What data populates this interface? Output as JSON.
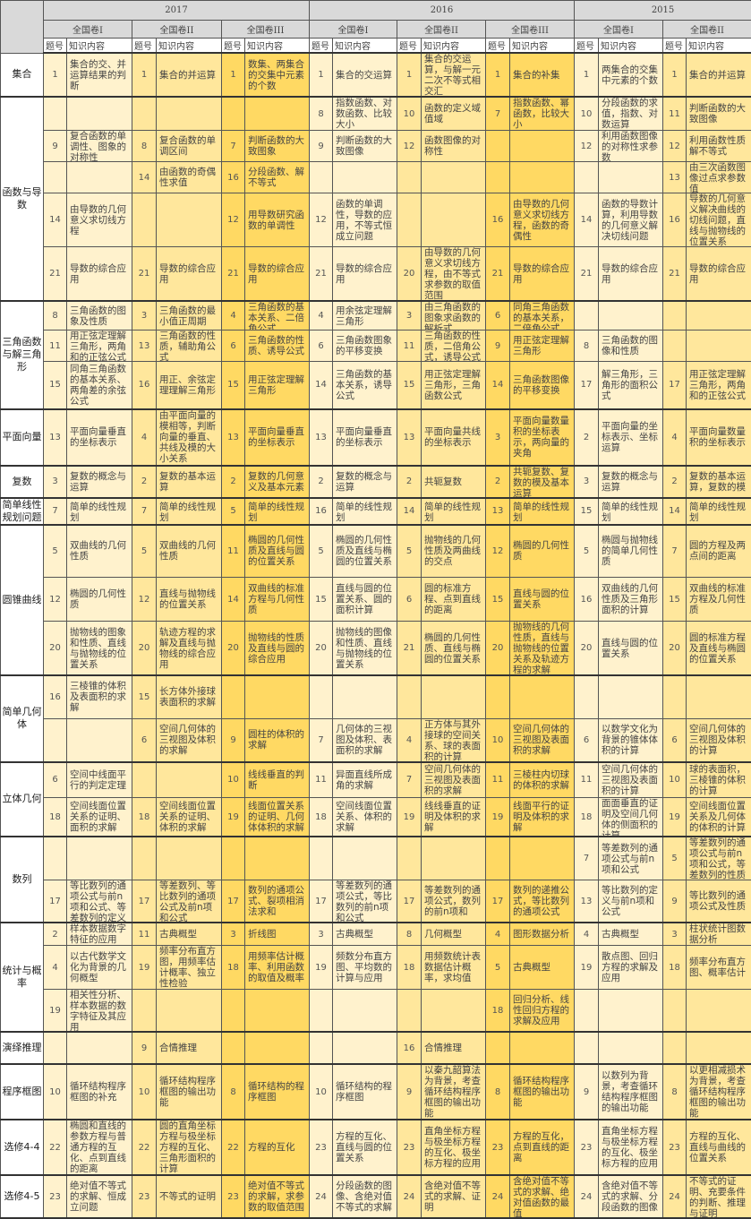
{
  "header": {
    "years": [
      {
        "label": "2017",
        "papers": 3
      },
      {
        "label": "2016",
        "papers": 3
      },
      {
        "label": "2015",
        "papers": 2
      }
    ],
    "papers": [
      "全国卷I",
      "全国卷II",
      "全国卷III",
      "全国卷I",
      "全国卷II",
      "全国卷III",
      "全国卷I",
      "全国卷II"
    ],
    "num_label": "题号",
    "content_label": "知识内容"
  },
  "colors": {
    "paper_I": "#fff2cd",
    "paper_II": "#ffe79c",
    "paper_III": "#ffd963",
    "header": "#d9d9d9"
  },
  "groups": [
    {
      "label": "集合",
      "rows": [
        [
          [
            "1",
            "集合的交、并运算结果的判断"
          ],
          [
            "1",
            "集合的并运算"
          ],
          [
            "1",
            "数集、两集合的交集中元素的个数"
          ],
          [
            "1",
            "集合的交运算"
          ],
          [
            "1",
            "集合的交运算，与解一元二次不等式相交汇"
          ],
          [
            "1",
            "集合的补集"
          ],
          [
            "1",
            "两集合的交集中元素的个数"
          ],
          [
            "1",
            "集合的并运算"
          ]
        ]
      ]
    },
    {
      "label": "函数与导数",
      "rows": [
        [
          [
            "",
            ""
          ],
          [
            "",
            ""
          ],
          [
            "",
            ""
          ],
          [
            "8",
            "指数函数、对数函数、比较大小"
          ],
          [
            "10",
            "函数的定义域值域"
          ],
          [
            "7",
            "指数函数、幂函数，比较大小"
          ],
          [
            "10",
            "分段函数的求值，指数、对数运算"
          ],
          [
            "11",
            "判断函数的大致图像"
          ]
        ],
        [
          [
            "9",
            "复合函数的单调性、图象的对称性"
          ],
          [
            "8",
            "复合函数的单调区间"
          ],
          [
            "7",
            "判断函数的大致图象"
          ],
          [
            "9",
            "判断函数的大致图像"
          ],
          [
            "12",
            "函数图像的对称性"
          ],
          [
            "",
            ""
          ],
          [
            "12",
            "利用函数图像的对称性求参数"
          ],
          [
            "12",
            "利用函数性质解不等式"
          ]
        ],
        [
          [
            "",
            ""
          ],
          [
            "14",
            "由函数的奇偶性求值"
          ],
          [
            "16",
            "分段函数、解不等式"
          ],
          [
            "",
            ""
          ],
          [
            "",
            ""
          ],
          [
            "",
            ""
          ],
          [
            "",
            ""
          ],
          [
            "13",
            "由三次函数图像过点求参数值"
          ]
        ],
        [
          [
            "14",
            "由导数的几何意义求切线方程"
          ],
          [
            "",
            ""
          ],
          [
            "12",
            "用导数研究函数的单调性"
          ],
          [
            "12",
            "函数的单调性，导数的应用，不等式恒成立问题"
          ],
          [
            "",
            ""
          ],
          [
            "16",
            "由导数的几何意义求切线方程，函数的奇偶性"
          ],
          [
            "14",
            "函数的导数计算，利用导数的几何意义解决切线问题"
          ],
          [
            "16",
            "导数的几何意义解决曲线的切线问题，直线与抛物线的位置关系"
          ]
        ],
        [
          [
            "21",
            "导数的综合应用"
          ],
          [
            "21",
            "导数的综合应用"
          ],
          [
            "21",
            "导数的综合应用"
          ],
          [
            "21",
            "导数的综合应用"
          ],
          [
            "20",
            "由导数的几何意义求切线方程，由不等式求参数的取值范围"
          ],
          [
            "21",
            "导数的综合应用"
          ],
          [
            "21",
            "导数的综合应用"
          ],
          [
            "21",
            "导数的综合应用"
          ]
        ]
      ]
    },
    {
      "label": "三角函数与解三角形",
      "rows": [
        [
          [
            "8",
            "三角函数的图象及性质"
          ],
          [
            "3",
            "三角函数的最小值正周期"
          ],
          [
            "4",
            "三角函数的基本关系、二倍角公式"
          ],
          [
            "4",
            "用余弦定理解三角形"
          ],
          [
            "3",
            "由三角函数的图象求函数的解析式"
          ],
          [
            "6",
            "同角三角函数的基本关系，二倍角公式"
          ],
          [
            "",
            ""
          ],
          [
            "",
            ""
          ]
        ],
        [
          [
            "11",
            "用正弦定理解三角形，两角和的正弦公式"
          ],
          [
            "13",
            "三角函数的性质，辅助角公式"
          ],
          [
            "6",
            "三角函数的性质、诱导公式"
          ],
          [
            "6",
            "三角函数图象的平移变换"
          ],
          [
            "11",
            "三角函数的性质，二倍角公式，诱导公式"
          ],
          [
            "9",
            "用正弦定理解三角形"
          ],
          [
            "8",
            "三角函数的图像和性质"
          ],
          [
            "",
            ""
          ]
        ],
        [
          [
            "15",
            "同角三角函数的基本关系、两角差的余弦公式"
          ],
          [
            "16",
            "用正、余弦定理理解三角形"
          ],
          [
            "15",
            "用正弦定理解三角形"
          ],
          [
            "14",
            "三角函数的基本关系，诱导公式"
          ],
          [
            "15",
            "用正弦定理解三角形，三角函数公式"
          ],
          [
            "14",
            "三角函数图像的平移变换"
          ],
          [
            "17",
            "解三角形，三角形的面积公式"
          ],
          [
            "17",
            "用正弦定理解三角形，两角和的正弦公式"
          ]
        ]
      ]
    },
    {
      "label": "平面向量",
      "rows": [
        [
          [
            "13",
            "平面向量垂直的坐标表示"
          ],
          [
            "4",
            "由平面向量的模相等，判断向量的垂直、共线及模的大小关系"
          ],
          [
            "13",
            "平面向量垂直的坐标表示"
          ],
          [
            "13",
            "平面向量垂直的坐标表示"
          ],
          [
            "13",
            "平面向量共线的坐标表示"
          ],
          [
            "3",
            "平面向量数量积的坐标表示，两向量的夹角"
          ],
          [
            "2",
            "平面向量的坐标表示、坐标运算"
          ],
          [
            "4",
            "平面向量数量积的坐标表示"
          ]
        ]
      ]
    },
    {
      "label": "复数",
      "rows": [
        [
          [
            "3",
            "复数的概念与运算"
          ],
          [
            "2",
            "复数的基本运算"
          ],
          [
            "2",
            "复数的几何意义及基本元素"
          ],
          [
            "2",
            "复数的概念与运算"
          ],
          [
            "2",
            "共轭复数"
          ],
          [
            "2",
            "共轭复数、复数的模及基本运算"
          ],
          [
            "3",
            "复数的概念与运算"
          ],
          [
            "2",
            "复数的基本运算，复数的模"
          ]
        ]
      ]
    },
    {
      "label": "简单线性规划问题",
      "rows": [
        [
          [
            "7",
            "简单的线性规划"
          ],
          [
            "7",
            "简单的线性规划"
          ],
          [
            "5",
            "简单的线性规划"
          ],
          [
            "16",
            "简单的线性规划"
          ],
          [
            "14",
            "简单的线性规划"
          ],
          [
            "13",
            "简单的线性规划"
          ],
          [
            "15",
            "简单的线性规划"
          ],
          [
            "14",
            "简单的线性规划"
          ]
        ]
      ]
    },
    {
      "label": "圆锥曲线",
      "rows": [
        [
          [
            "5",
            "双曲线的几何性质"
          ],
          [
            "5",
            "双曲线的几何性质"
          ],
          [
            "11",
            "椭圆的几何性质及直线与圆的位置关系"
          ],
          [
            "5",
            "椭圆的几何性质及直线与椭圆的位置关系"
          ],
          [
            "5",
            "抛物线的几何性质及两曲线的交点"
          ],
          [
            "12",
            "椭圆的几何性质"
          ],
          [
            "5",
            "椭圆与抛物线的简单几何性质"
          ],
          [
            "7",
            "圆的方程及两点间的距离"
          ]
        ],
        [
          [
            "12",
            "椭圆的几何性质"
          ],
          [
            "12",
            "直线与抛物线的位置关系"
          ],
          [
            "14",
            "双曲线的标准方程与几何性质"
          ],
          [
            "15",
            "直线与圆的位置关系、圆的面积计算"
          ],
          [
            "6",
            "圆的标准方程、点到直线的距离"
          ],
          [
            "15",
            "直线与圆的位置关系"
          ],
          [
            "16",
            "双曲线的几何性质及三角形面积的计算"
          ],
          [
            "15",
            "双曲线的标准方程及几何性质"
          ]
        ],
        [
          [
            "20",
            "抛物线的图象和性质、直线与抛物线的位置关系"
          ],
          [
            "20",
            "轨迹方程的求解及直线与抛物线的综合应用"
          ],
          [
            "20",
            "抛物线的性质及直线与圆的综合应用"
          ],
          [
            "20",
            "抛物线的图像和性质、直线与抛物线的位置关系"
          ],
          [
            "21",
            "椭圆的几何性质、直线与椭圆的位置关系"
          ],
          [
            "20",
            "抛物线的几何性质，直线与抛物线的位置关系及轨迹方程的求解"
          ],
          [
            "20",
            "直线与圆的位置关系"
          ],
          [
            "20",
            "圆的标准方程及直线与椭圆的位置关系"
          ]
        ]
      ]
    },
    {
      "label": "简单几何体",
      "rows": [
        [
          [
            "16",
            "三棱锥的体积及表面积的求解"
          ],
          [
            "15",
            "长方体外接球表面积的求解"
          ],
          [
            "",
            ""
          ],
          [
            "",
            ""
          ],
          [
            "",
            ""
          ],
          [
            "",
            ""
          ],
          [
            "",
            ""
          ],
          [
            "",
            ""
          ]
        ],
        [
          [
            "",
            ""
          ],
          [
            "6",
            "空间几何体的三视图及体积的求解"
          ],
          [
            "9",
            "圆柱的体积的求解"
          ],
          [
            "7",
            "几何体的三视图及体积、表面积的求解"
          ],
          [
            "4",
            "正方体与其外接球的空间关系、球的表面积的计算"
          ],
          [
            "10",
            "空间几何体的三视图及表面积的求解"
          ],
          [
            "6",
            "以数学文化为背景的锥体体积的计算"
          ],
          [
            "6",
            "空间几何体的三视图及体积的计算"
          ]
        ]
      ]
    },
    {
      "label": "立体几何",
      "rows": [
        [
          [
            "6",
            "空间中线面平行的判定定理"
          ],
          [
            "",
            ""
          ],
          [
            "10",
            "线线垂直的判断"
          ],
          [
            "11",
            "异面直线所成角的求解"
          ],
          [
            "7",
            "空间几何体的三视图及表面积的求解"
          ],
          [
            "11",
            "三棱柱内切球的体积的求解"
          ],
          [
            "11",
            "空间几何体的三视图及表面积的计算"
          ],
          [
            "10",
            "球的表面积，三棱锥的体积的计算"
          ]
        ],
        [
          [
            "18",
            "空间线面位置关系的证明、面积的求解"
          ],
          [
            "18",
            "空间线面位置关系的证明、体积的求解"
          ],
          [
            "19",
            "线面位置关系的证明、几何体体积的求解"
          ],
          [
            "18",
            "空间线面位置关系、体积的求解"
          ],
          [
            "19",
            "线线垂直的证明及体积的求解"
          ],
          [
            "19",
            "线面平行的证明及体积的求解"
          ],
          [
            "18",
            "面面垂直的证明及空间几何体的侧面积的计算"
          ],
          [
            "19",
            "空间线面位置关系及几何体的体积的计算"
          ]
        ]
      ]
    },
    {
      "label": "数列",
      "rows": [
        [
          [
            "",
            ""
          ],
          [
            "",
            ""
          ],
          [
            "",
            ""
          ],
          [
            "",
            ""
          ],
          [
            "",
            ""
          ],
          [
            "",
            ""
          ],
          [
            "7",
            "等差数列的通项公式与前n项和公式"
          ],
          [
            "5",
            "等差数列的通项公式与前n项和公式，等差数列的性质"
          ]
        ],
        [
          [
            "17",
            "等比数列的通项公式与前n项和公式、等差数列的定义"
          ],
          [
            "17",
            "等差数列、等比数列的通项公式及前n项和公式"
          ],
          [
            "17",
            "数列的通项公式、裂项相消法求和"
          ],
          [
            "17",
            "等差数列的通项公式，等比数列的前n项和公式"
          ],
          [
            "17",
            "等差数列的通项公式，数列的前n项和"
          ],
          [
            "17",
            "数列的递推公式，等比数列的通项公式"
          ],
          [
            "13",
            "等比数列的定义与前n项和公式"
          ],
          [
            "9",
            "等比数列的通项公式及性质"
          ]
        ]
      ]
    },
    {
      "label": "统计与概率",
      "rows": [
        [
          [
            "2",
            "样本数据数字特征的应用"
          ],
          [
            "11",
            "古典概型"
          ],
          [
            "3",
            "折线图"
          ],
          [
            "3",
            "古典概型"
          ],
          [
            "8",
            "几何概型"
          ],
          [
            "4",
            "图形数据分析"
          ],
          [
            "4",
            "古典概型"
          ],
          [
            "3",
            "柱状统计图数据分析"
          ]
        ],
        [
          [
            "4",
            "以古代数学文化为背景的几何概型"
          ],
          [
            "19",
            "频率分布直方图，用频率估计概率、独立性检验"
          ],
          [
            "18",
            "用频率估计概率、利用函数的取值及概率"
          ],
          [
            "19",
            "频数分布直方图、平均数的计算与应用"
          ],
          [
            "18",
            "用频数统计表数据估计概率，求均值"
          ],
          [
            "5",
            "古典概型"
          ],
          [
            "19",
            "散点图、回归方程的求解及应用"
          ],
          [
            "18",
            "频率分布直方图、概率估计"
          ]
        ],
        [
          [
            "19",
            "相关性分析、样本数据的数字特征及其应用"
          ],
          [
            "",
            ""
          ],
          [
            "",
            ""
          ],
          [
            "",
            ""
          ],
          [
            "",
            ""
          ],
          [
            "18",
            "回归分析、线性回归方程的求解及应用"
          ],
          [
            "",
            ""
          ],
          [
            "",
            ""
          ]
        ]
      ]
    },
    {
      "label": "演绎推理",
      "rows": [
        [
          [
            "",
            ""
          ],
          [
            "9",
            "合情推理"
          ],
          [
            "",
            ""
          ],
          [
            "",
            ""
          ],
          [
            "16",
            "合情推理"
          ],
          [
            "",
            ""
          ],
          [
            "",
            ""
          ],
          [
            "",
            ""
          ]
        ]
      ]
    },
    {
      "label": "程序框图",
      "rows": [
        [
          [
            "10",
            "循环结构程序框图的补充"
          ],
          [
            "10",
            "循环结构程序框图的输出功能"
          ],
          [
            "8",
            "循环结构的程序框图"
          ],
          [
            "10",
            "循环结构的程序框图"
          ],
          [
            "9",
            "以秦九韶算法为背景，考查循环结构程序框图的输出功能"
          ],
          [
            "8",
            "循环结构程序框图的输出功能"
          ],
          [
            "9",
            "以数列为背景，考查循环结构程序框图的输出功能"
          ],
          [
            "8",
            "以更相减损术为背景，考查循环结构程序框图的输出功能"
          ]
        ]
      ]
    },
    {
      "label": "选修4-4",
      "rows": [
        [
          [
            "22",
            "椭圆和直线的参数方程与普通方程的互化、点到直线的距离"
          ],
          [
            "22",
            "圆的直角坐标方程与极坐标方程的互化、三角形面积的计算"
          ],
          [
            "22",
            "方程的互化"
          ],
          [
            "23",
            "方程的互化、直线与圆的位置关系"
          ],
          [
            "23",
            "直角坐标方程与极坐标方程的互化、极坐标方程的应用"
          ],
          [
            "23",
            "方程的互化，点到直线的距离"
          ],
          [
            "23",
            "直角坐标方程与极坐标方程的互化、极坐标方程的应用"
          ],
          [
            "23",
            "方程的互化、直线与曲线的位置关系"
          ]
        ]
      ]
    },
    {
      "label": "选修4-5",
      "rows": [
        [
          [
            "23",
            "绝对值不等式的求解、恒成立问题"
          ],
          [
            "23",
            "不等式的证明"
          ],
          [
            "23",
            "绝对值不等式的求解，求参数的取值范围"
          ],
          [
            "24",
            "分段函数的图像、含绝对值不等式的求解"
          ],
          [
            "24",
            "含绝对值不等式的求解、证明"
          ],
          [
            "24",
            "含绝对值不等式的求解、绝对值函数的最值"
          ],
          [
            "24",
            "含绝对值不等式的求解、分段函数的图像"
          ],
          [
            "24",
            "不等式的证明、充要条件的判断、推理与证明"
          ]
        ]
      ]
    }
  ]
}
